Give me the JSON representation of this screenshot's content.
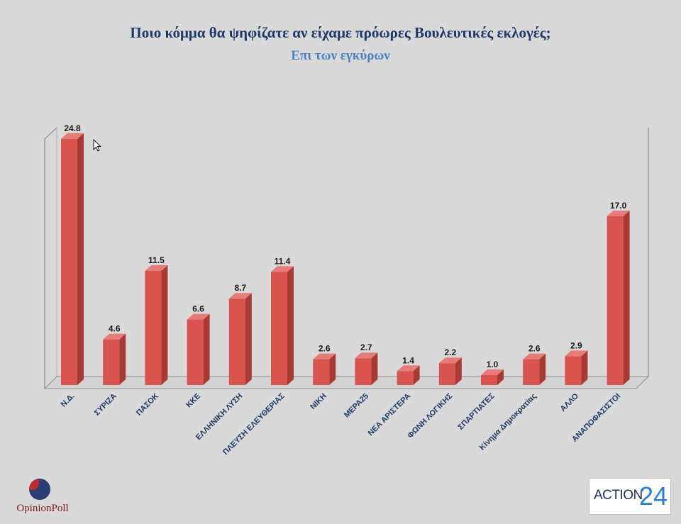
{
  "chart_data": {
    "type": "bar",
    "title": "Ποιο κόμμα θα ψηφίζατε αν είχαμε πρόωρες Βουλευτικές εκλογές;",
    "subtitle": "Επι των εγκύρων",
    "categories": [
      "Ν.Δ.",
      "ΣΥΡΙΖΑ",
      "ΠΑΣΟΚ",
      "ΚΚΕ",
      "ΕΛΛΗΝΙΚΗ ΛΥΣΗ",
      "ΠΛΕΥΣΗ ΕΛΕΥΘΕΡΙΑΣ",
      "ΝΙΚΗ",
      "ΜΕΡΑ25",
      "ΝΕΑ ΑΡΙΣΤΕΡΑ",
      "ΦΩΝΗ ΛΟΓΙΚΗΣ",
      "ΣΠΑΡΤΙΑΤΕΣ",
      "Κίνημα Δημοκρατίας",
      "ΑΛΛΟ",
      "ΑΝΑΠΟΦΑΣΙΣΤΟΙ"
    ],
    "values": [
      24.8,
      4.6,
      11.5,
      6.6,
      8.7,
      11.4,
      2.6,
      2.7,
      1.4,
      2.2,
      1.0,
      2.6,
      2.9,
      17.0
    ],
    "value_labels": [
      "24.8",
      "4.6",
      "11.5",
      "6.6",
      "8.7",
      "11.4",
      "2.6",
      "2.7",
      "1.4",
      "2.2",
      "1.0",
      "2.6",
      "2.9",
      "17.0"
    ],
    "ylim": [
      0,
      25
    ],
    "grid": false,
    "colors": {
      "bar_front": "#d9534f",
      "bar_side": "#a83a36",
      "bar_top": "#e57c78"
    }
  },
  "logos": {
    "left_text": "OpinionPoll",
    "right_text": "ACTION",
    "right_number": "24"
  }
}
